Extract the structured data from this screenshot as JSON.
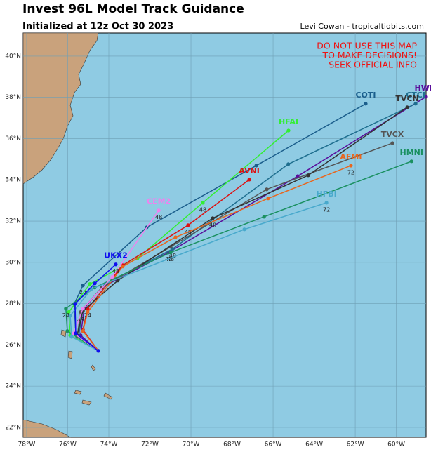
{
  "header": {
    "title": "Invest 96L Model Track Guidance",
    "subtitle": "Initialized at 12z Oct 30 2023",
    "credit": "Levi Cowan - tropicaltidbits.com"
  },
  "warning": [
    "DO NOT USE THIS MAP",
    "TO MAKE DECISIONS!",
    "SEEK OFFICIAL INFO"
  ],
  "map": {
    "lonlim": [
      -78.17,
      -58.55
    ],
    "latlim": [
      21.52,
      41.12
    ],
    "lonticks": [
      {
        "value": -78,
        "label": "78°W"
      },
      {
        "value": -76,
        "label": "76°W"
      },
      {
        "value": -74,
        "label": "74°W"
      },
      {
        "value": -72,
        "label": "72°W"
      },
      {
        "value": -70,
        "label": "70°W"
      },
      {
        "value": -68,
        "label": "68°W"
      },
      {
        "value": -66,
        "label": "66°W"
      },
      {
        "value": -64,
        "label": "64°W"
      },
      {
        "value": -62,
        "label": "62°W"
      },
      {
        "value": -60,
        "label": "60°W"
      }
    ],
    "latticks": [
      {
        "value": 22,
        "label": "22°N"
      },
      {
        "value": 24,
        "label": "24°N"
      },
      {
        "value": 26,
        "label": "26°N"
      },
      {
        "value": 28,
        "label": "28°N"
      },
      {
        "value": 30,
        "label": "30°N"
      },
      {
        "value": 32,
        "label": "32°N"
      },
      {
        "value": 34,
        "label": "34°N"
      },
      {
        "value": 36,
        "label": "36°N"
      },
      {
        "value": 38,
        "label": "38°N"
      },
      {
        "value": 40,
        "label": "40°N"
      }
    ],
    "tracks": [
      {
        "name": "COTI",
        "color": "#1b5e8c",
        "lon": [
          -74.51,
          -75.61,
          -75.68,
          -75.26,
          -72.15,
          -66.82,
          -61.49
        ],
        "lat": [
          25.71,
          26.56,
          27.99,
          28.88,
          31.7,
          34.69,
          37.69
        ],
        "hours": [
          null,
          null,
          null,
          "24",
          null,
          null,
          null
        ]
      },
      {
        "name": "HFAI",
        "color": "#33ee33",
        "lon": [
          -74.51,
          -75.88,
          -75.95,
          -74.92,
          -72.6,
          -69.42,
          -65.25
        ],
        "lat": [
          25.71,
          26.46,
          27.59,
          28.95,
          30.2,
          32.89,
          36.39
        ],
        "hours": [
          null,
          null,
          null,
          null,
          null,
          "48",
          null
        ]
      },
      {
        "name": "AVNI",
        "color": "#dd1111",
        "lon": [
          -74.51,
          -75.26,
          -75.03,
          -73.32,
          -70.14,
          -67.16
        ],
        "lat": [
          25.71,
          26.73,
          27.76,
          29.86,
          31.8,
          34.01
        ],
        "hours": [
          null,
          null,
          "24",
          null,
          "48",
          null
        ]
      },
      {
        "name": "HWFI",
        "color": "#5a0f9c",
        "lon": [
          -74.51,
          -75.37,
          -75.2,
          -74.34,
          -71.09,
          -64.8,
          -58.55
        ],
        "lat": [
          25.71,
          26.46,
          27.76,
          28.78,
          30.48,
          34.18,
          38.03
        ],
        "hours": [
          null,
          null,
          null,
          null,
          "48",
          null,
          null
        ]
      },
      {
        "name": "CTCI",
        "color": "#1f6f8f",
        "lon": [
          -74.51,
          -75.47,
          -75.26,
          -74.17,
          -70.89,
          -65.26,
          -59.06
        ],
        "lat": [
          25.71,
          26.39,
          27.76,
          28.95,
          30.65,
          34.76,
          37.69
        ],
        "hours": [
          null,
          null,
          null,
          null,
          "48",
          null,
          null
        ]
      },
      {
        "name": "TVCX",
        "color": "#555555",
        "lon": [
          -74.51,
          -75.54,
          -75.37,
          -74.34,
          -70.99,
          -66.31,
          -60.19
        ],
        "lat": [
          25.71,
          26.39,
          27.59,
          28.78,
          30.75,
          33.54,
          35.78
        ],
        "hours": [
          null,
          null,
          "24",
          null,
          null,
          null,
          null
        ]
      },
      {
        "name": "TVCN",
        "color": "#333333",
        "lon": [
          -74.51,
          -75.54,
          -75.26,
          -73.56,
          -68.94,
          -64.29,
          -59.47
        ],
        "lat": [
          25.71,
          26.46,
          27.65,
          29.12,
          32.14,
          34.22,
          37.52
        ],
        "hours": [
          null,
          null,
          null,
          null,
          "48",
          null,
          null
        ]
      },
      {
        "name": "AEMI",
        "color": "#e8661e",
        "lon": [
          -74.51,
          -75.26,
          -75.03,
          -73.32,
          -70.75,
          -66.24,
          -62.21
        ],
        "lat": [
          25.71,
          26.67,
          27.59,
          29.8,
          31.22,
          33.1,
          34.69
        ],
        "hours": [
          null,
          null,
          null,
          null,
          null,
          null,
          "72"
        ]
      },
      {
        "name": "HMNI",
        "color": "#1a9060",
        "lon": [
          -74.51,
          -76.02,
          -76.09,
          -74.68,
          -70.99,
          -66.44,
          -59.26
        ],
        "lat": [
          25.71,
          26.67,
          27.76,
          28.78,
          30.48,
          32.21,
          34.9
        ],
        "hours": [
          null,
          null,
          "24",
          null,
          "48",
          null,
          null
        ]
      },
      {
        "name": "HFBI",
        "color": "#48a9cc",
        "lon": [
          -74.51,
          -75.81,
          -75.88,
          -74.85,
          -67.4,
          -63.4
        ],
        "lat": [
          25.71,
          26.39,
          27.41,
          28.71,
          31.6,
          32.89
        ],
        "hours": [
          null,
          null,
          null,
          null,
          null,
          "72"
        ]
      },
      {
        "name": "CEM2",
        "color": "#ee82ee",
        "lon": [
          -74.51,
          -75.71,
          -75.26,
          -73.83,
          -71.57
        ],
        "lat": [
          25.71,
          26.56,
          27.76,
          29.29,
          32.52
        ],
        "hours": [
          null,
          null,
          null,
          null,
          "48"
        ]
      },
      {
        "name": "UKX2",
        "color": "#1010ee",
        "lon": [
          -74.51,
          -75.61,
          -75.64,
          -74.68,
          -73.66
        ],
        "lat": [
          25.71,
          26.56,
          27.99,
          28.98,
          29.9
        ],
        "hours": [
          null,
          null,
          null,
          null,
          "48"
        ]
      }
    ]
  }
}
